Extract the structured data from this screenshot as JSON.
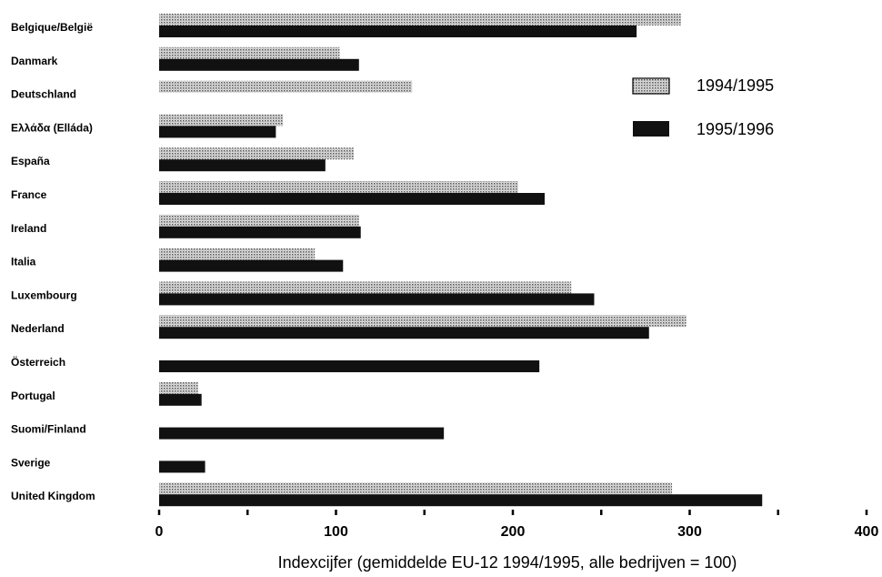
{
  "chart_data": {
    "type": "bar",
    "orientation": "horizontal",
    "categories": [
      "Belgique/België",
      "Danmark",
      "Deutschland",
      "Ελλάδα (Elláda)",
      "España",
      "France",
      "Ireland",
      "Italia",
      "Luxembourg",
      "Nederland",
      "Österreich",
      "Portugal",
      "Suomi/Finland",
      "Sverige",
      "United Kingdom"
    ],
    "series": [
      {
        "name": "1994/1995",
        "color": "#b8b8b8",
        "pattern": "dotted",
        "values": [
          295,
          102,
          143,
          70,
          110,
          203,
          113,
          88,
          233,
          298,
          null,
          22,
          null,
          null,
          290
        ]
      },
      {
        "name": "1995/1996",
        "color": "#111111",
        "pattern": "solid",
        "values": [
          270,
          113,
          null,
          66,
          94,
          218,
          114,
          104,
          246,
          277,
          215,
          24,
          161,
          26,
          341
        ]
      }
    ],
    "xlabel": "Indexcijfer (gemiddelde EU-12 1994/1995, alle bedrijven = 100)",
    "xlim": [
      0,
      400
    ],
    "xticks": [
      0,
      100,
      200,
      300,
      400
    ],
    "legend": "right",
    "grid": false
  }
}
